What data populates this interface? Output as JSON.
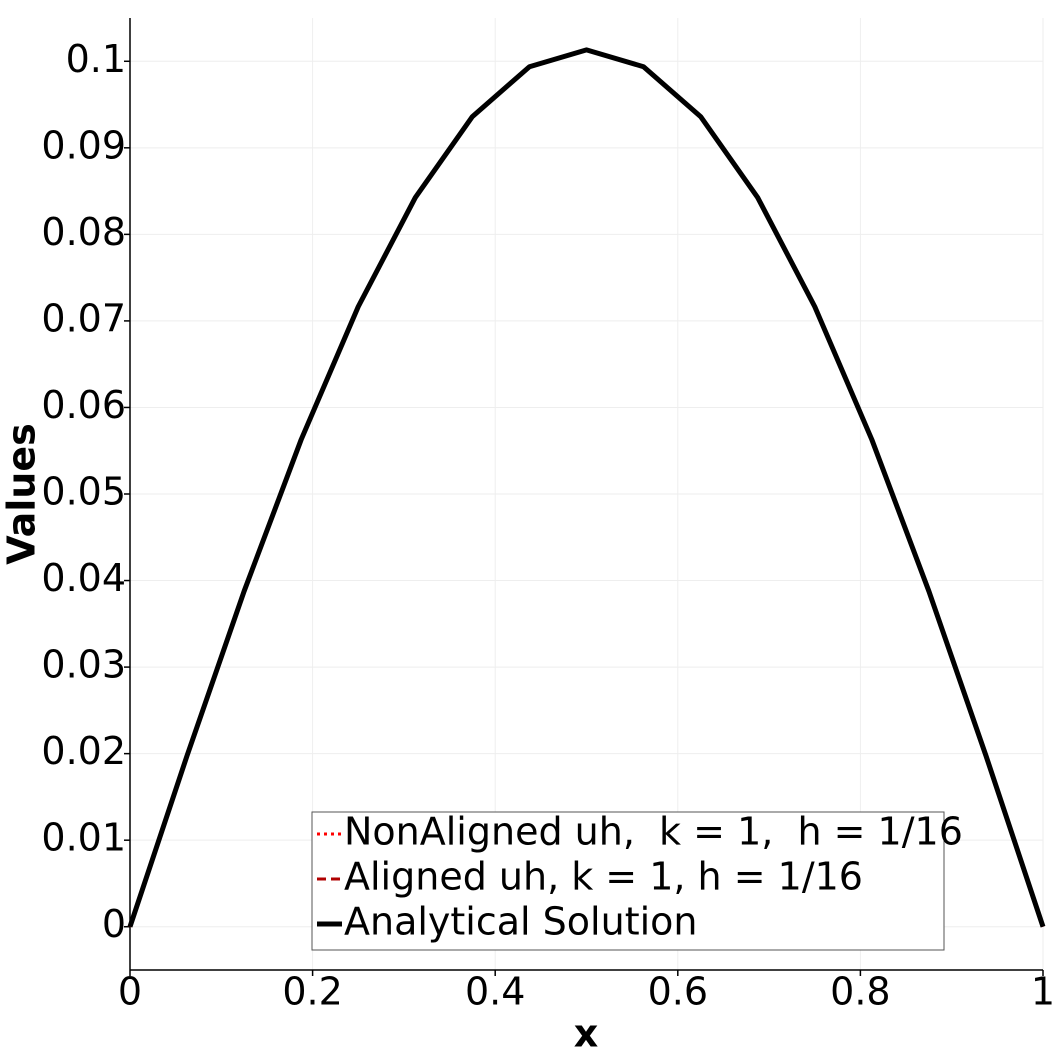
{
  "chart_data": {
    "type": "line",
    "x_label": "x",
    "y_label": "Values",
    "x": [
      0,
      0.0625,
      0.125,
      0.1875,
      0.25,
      0.3125,
      0.375,
      0.4375,
      0.5,
      0.5625,
      0.625,
      0.6875,
      0.75,
      0.8125,
      0.875,
      0.9375,
      1
    ],
    "series": [
      {
        "name": "NonAligned uh,  k = 1,  h = 1/16",
        "color": "#ff0000",
        "style": "dotted",
        "values": [
          0,
          0.01977,
          0.03877,
          0.05629,
          0.07165,
          0.08425,
          0.09361,
          0.09937,
          0.10132,
          0.09937,
          0.09361,
          0.08425,
          0.07165,
          0.05629,
          0.03877,
          0.01977,
          0
        ]
      },
      {
        "name": "Aligned uh, k = 1, h = 1/16",
        "color": "#b00000",
        "style": "dashed",
        "values": [
          0,
          0.01977,
          0.03877,
          0.05629,
          0.07165,
          0.08425,
          0.09361,
          0.09937,
          0.10132,
          0.09937,
          0.09361,
          0.08425,
          0.07165,
          0.05629,
          0.03877,
          0.01977,
          0
        ]
      },
      {
        "name": "Analytical Solution",
        "color": "#000000",
        "style": "solid",
        "values": [
          0,
          0.01977,
          0.03877,
          0.05629,
          0.07165,
          0.08425,
          0.09361,
          0.09937,
          0.10132,
          0.09937,
          0.09361,
          0.08425,
          0.07165,
          0.05629,
          0.03877,
          0.01977,
          0
        ]
      }
    ],
    "xlim": [
      0,
      1
    ],
    "xticks": [
      0,
      0.2,
      0.4,
      0.6,
      0.8,
      1
    ],
    "ylim": [
      -0.005,
      0.105
    ],
    "yticks": [
      0,
      0.01,
      0.02,
      0.03,
      0.04,
      0.05,
      0.06,
      0.07,
      0.08,
      0.09,
      0.1
    ],
    "grid": true,
    "legend": "lower center"
  }
}
